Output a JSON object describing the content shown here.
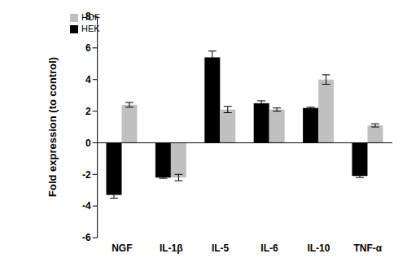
{
  "chart_data": {
    "type": "bar",
    "y_label": "Fold expression (to control)",
    "categories": [
      "NGF",
      "IL-1β",
      "IL-5",
      "IL-6",
      "IL-10",
      "TNF-α"
    ],
    "series": [
      {
        "name": "HEK",
        "color": "#000000",
        "values": [
          -3.3,
          -2.2,
          5.4,
          2.5,
          2.2,
          -2.1
        ],
        "errors": [
          0.2,
          0.05,
          0.4,
          0.15,
          0.05,
          0.1
        ]
      },
      {
        "name": "HDF",
        "color": "#c0c0c0",
        "values": [
          2.4,
          -2.2,
          2.1,
          2.1,
          4.0,
          1.1
        ],
        "errors": [
          0.15,
          0.2,
          0.2,
          0.1,
          0.3,
          0.1
        ]
      }
    ],
    "ylim": [
      -6,
      8
    ],
    "yticks": [
      -6,
      -4,
      -2,
      0,
      2,
      4,
      6,
      8
    ],
    "legend": "upper left",
    "grid": false
  }
}
